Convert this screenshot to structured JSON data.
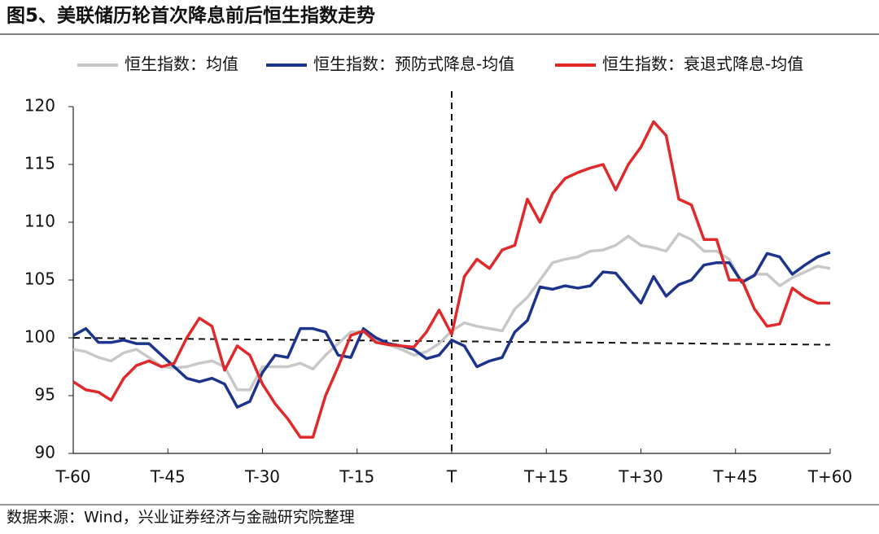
{
  "chart_data": {
    "type": "line",
    "title": "图5、美联储历轮首次降息前后恒生指数走势",
    "source": "数据来源：Wind，兴业证券经济与金融研究院整理",
    "x": [
      -60,
      -58,
      -56,
      -54,
      -52,
      -50,
      -48,
      -46,
      -44,
      -42,
      -40,
      -38,
      -36,
      -34,
      -32,
      -30,
      -28,
      -26,
      -24,
      -22,
      -20,
      -18,
      -16,
      -14,
      -12,
      -10,
      -8,
      -6,
      -4,
      -2,
      0,
      2,
      4,
      6,
      8,
      10,
      12,
      14,
      16,
      18,
      20,
      22,
      24,
      26,
      28,
      30,
      32,
      34,
      36,
      38,
      40,
      42,
      44,
      46,
      48,
      50,
      52,
      54,
      56,
      58,
      60
    ],
    "series": [
      {
        "name": "恒生指数：均值",
        "color": "#c8c8c8",
        "values": [
          99,
          98.8,
          98.3,
          98,
          98.7,
          99,
          98.3,
          97.5,
          97.4,
          97.5,
          97.8,
          98,
          97.5,
          95.5,
          95.5,
          97.5,
          97.5,
          97.5,
          97.8,
          97.3,
          98.5,
          99.5,
          100.5,
          100.5,
          99.8,
          99.4,
          99,
          98.5,
          98.8,
          99.5,
          100.6,
          101.3,
          101,
          100.8,
          100.6,
          102.5,
          103.5,
          105,
          106.5,
          106.8,
          107,
          107.5,
          107.6,
          108,
          108.8,
          108,
          107.8,
          107.5,
          109,
          108.5,
          107.5,
          107.5,
          106.8,
          104.8,
          105.5,
          105.5,
          104.5,
          105.2,
          105.7,
          106.2,
          106
        ]
      },
      {
        "name": "恒生指数：预防式降息-均值",
        "color": "#1c348c",
        "values": [
          100.2,
          100.8,
          99.6,
          99.6,
          99.8,
          99.5,
          99.5,
          98.5,
          97.5,
          96.5,
          96.2,
          96.5,
          96,
          94,
          94.5,
          97,
          98.5,
          98.3,
          100.8,
          100.8,
          100.5,
          98.5,
          98.3,
          100.8,
          100,
          99.5,
          99.3,
          99,
          98.2,
          98.5,
          99.8,
          99.3,
          97.5,
          98,
          98.3,
          100.5,
          101.5,
          104.4,
          104.2,
          104.5,
          104.3,
          104.5,
          105.7,
          105.6,
          104.3,
          103,
          105.3,
          103.6,
          104.6,
          105,
          106.3,
          106.5,
          106.5,
          104.8,
          105.4,
          107.3,
          107,
          105.5,
          106.3,
          107,
          107.4
        ]
      },
      {
        "name": "恒生指数：衰退式降息-均值",
        "color": "#e0292b",
        "values": [
          96.2,
          95.5,
          95.3,
          94.6,
          96.5,
          97.6,
          98,
          97.5,
          97.8,
          100,
          101.7,
          101,
          97.2,
          99.3,
          98.5,
          96,
          94.3,
          93,
          91.4,
          91.4,
          95,
          97.5,
          100.2,
          100.6,
          99.6,
          99.4,
          99.3,
          99.2,
          100.5,
          102.4,
          100.3,
          105.3,
          106.8,
          106,
          107.6,
          108,
          112,
          110,
          112.5,
          113.8,
          114.3,
          114.7,
          115,
          112.8,
          115,
          116.5,
          118.7,
          117.5,
          112,
          111.5,
          108.5,
          108.5,
          105,
          105,
          102.5,
          101,
          101.2,
          104.3,
          103.5,
          103,
          103
        ]
      }
    ],
    "reference_line": {
      "x": [
        -60,
        60
      ],
      "y": [
        100,
        99.4
      ]
    },
    "vline": 0,
    "xlim": [
      -60,
      60
    ],
    "xticks": [
      {
        "value": -60,
        "label": "T-60"
      },
      {
        "value": -45,
        "label": "T-45"
      },
      {
        "value": -30,
        "label": "T-30"
      },
      {
        "value": -15,
        "label": "T-15"
      },
      {
        "value": 0,
        "label": "T"
      },
      {
        "value": 15,
        "label": "T+15"
      },
      {
        "value": 30,
        "label": "T+30"
      },
      {
        "value": 45,
        "label": "T+45"
      },
      {
        "value": 60,
        "label": "T+60"
      }
    ],
    "ylim": [
      90,
      120
    ],
    "yticks": [
      90,
      95,
      100,
      105,
      110,
      115,
      120
    ],
    "legend": "top"
  }
}
